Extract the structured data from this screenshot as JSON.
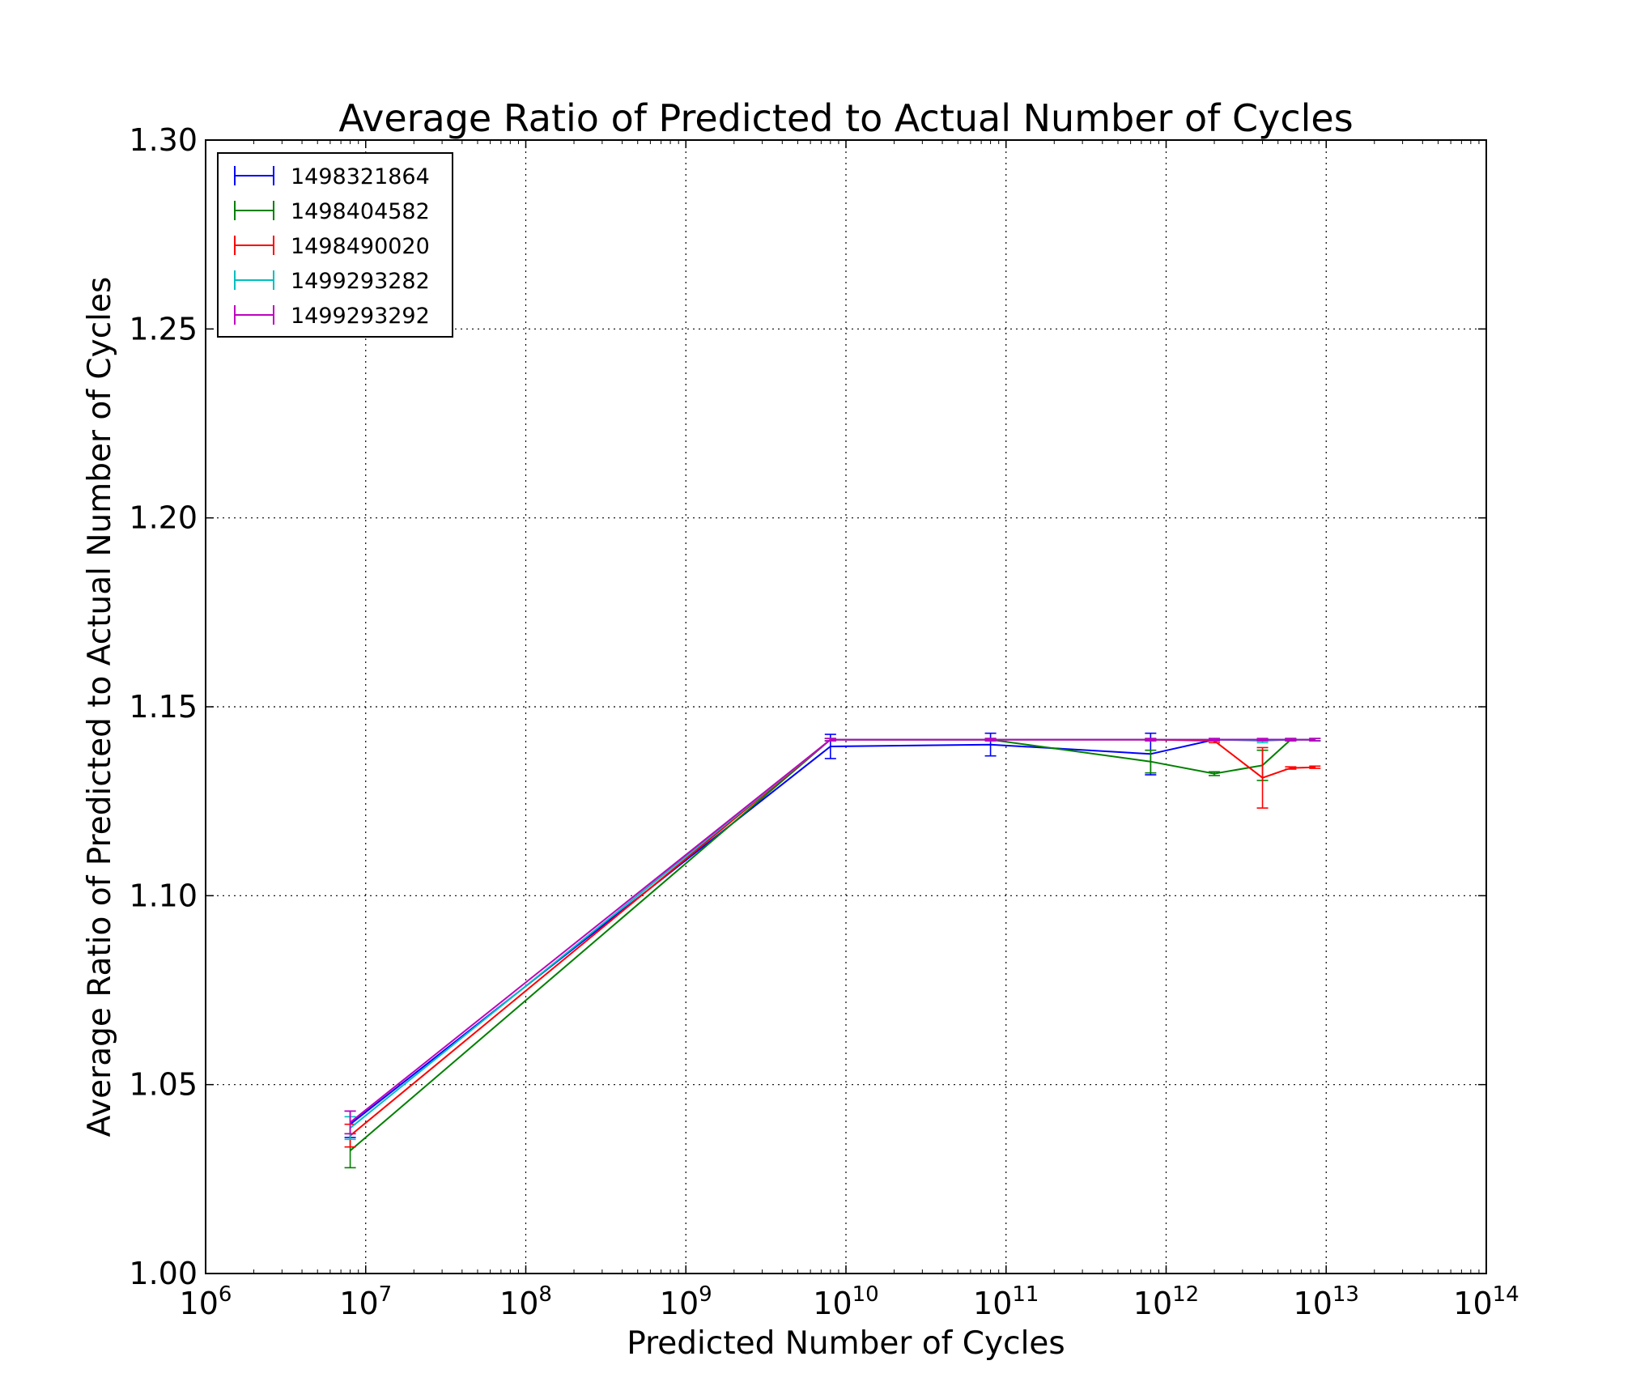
{
  "chart_data": {
    "type": "line",
    "title": "Average Ratio of Predicted to Actual Number of Cycles",
    "xlabel": "Predicted Number of Cycles",
    "ylabel": "Average Ratio of Predicted to Actual Number of Cycles",
    "xscale": "log",
    "xlim": [
      1000000,
      100000000000000
    ],
    "ylim": [
      1.0,
      1.3
    ],
    "x_ticks": [
      {
        "base": "10",
        "exp": "6"
      },
      {
        "base": "10",
        "exp": "7"
      },
      {
        "base": "10",
        "exp": "8"
      },
      {
        "base": "10",
        "exp": "9"
      },
      {
        "base": "10",
        "exp": "10"
      },
      {
        "base": "10",
        "exp": "11"
      },
      {
        "base": "10",
        "exp": "12"
      },
      {
        "base": "10",
        "exp": "13"
      },
      {
        "base": "10",
        "exp": "14"
      }
    ],
    "y_ticks": [
      "1.00",
      "1.05",
      "1.10",
      "1.15",
      "1.20",
      "1.25",
      "1.30"
    ],
    "grid": true,
    "grid_style": "dotted",
    "legend_position": "top-left",
    "series": [
      {
        "name": "1498321864",
        "color": "#0000ff",
        "x": [
          8000000,
          8000000000,
          80000000000,
          800000000000,
          2000000000000,
          4000000000000,
          6000000000000,
          8500000000000
        ],
        "y": [
          1.0395,
          1.1395,
          1.14,
          1.1375,
          1.1413,
          1.1413,
          1.1413,
          1.1413
        ],
        "err": [
          0.0035,
          0.0032,
          0.003,
          0.0055,
          0.0003,
          0.0003,
          0.0003,
          0.0003
        ]
      },
      {
        "name": "1498404582",
        "color": "#008000",
        "x": [
          8000000,
          8000000000,
          80000000000,
          800000000000,
          2000000000000,
          4000000000000,
          6000000000000,
          8500000000000
        ],
        "y": [
          1.0325,
          1.1413,
          1.1413,
          1.1355,
          1.1323,
          1.1345,
          1.1413,
          1.1413
        ],
        "err": [
          0.0045,
          0.0003,
          0.0003,
          0.003,
          0.0005,
          0.004,
          0.0003,
          0.0003
        ]
      },
      {
        "name": "1498490020",
        "color": "#ff0000",
        "x": [
          8000000,
          8000000000,
          80000000000,
          800000000000,
          2000000000000,
          4000000000000,
          6000000000000,
          8500000000000
        ],
        "y": [
          1.0365,
          1.1413,
          1.1413,
          1.1413,
          1.141,
          1.1312,
          1.1338,
          1.134
        ],
        "err": [
          0.003,
          0.0003,
          0.0003,
          0.0003,
          0.0005,
          0.008,
          0.0003,
          0.0003
        ]
      },
      {
        "name": "1499293282",
        "color": "#00bfbf",
        "x": [
          8000000,
          8000000000,
          80000000000,
          800000000000,
          2000000000000,
          4000000000000,
          6000000000000,
          8500000000000
        ],
        "y": [
          1.0385,
          1.1413,
          1.1413,
          1.1413,
          1.1413,
          1.141,
          1.1413,
          1.1413
        ],
        "err": [
          0.003,
          0.0003,
          0.0003,
          0.0003,
          0.0003,
          0.0005,
          0.0003,
          0.0003
        ]
      },
      {
        "name": "1499293292",
        "color": "#bf00bf",
        "x": [
          8000000,
          8000000000,
          80000000000,
          800000000000,
          2000000000000,
          4000000000000,
          6000000000000,
          8500000000000
        ],
        "y": [
          1.04,
          1.1413,
          1.1413,
          1.1413,
          1.1413,
          1.1413,
          1.1413,
          1.1413
        ],
        "err": [
          0.003,
          0.0003,
          0.0003,
          0.0003,
          0.0003,
          0.0003,
          0.0003,
          0.0003
        ]
      }
    ]
  }
}
